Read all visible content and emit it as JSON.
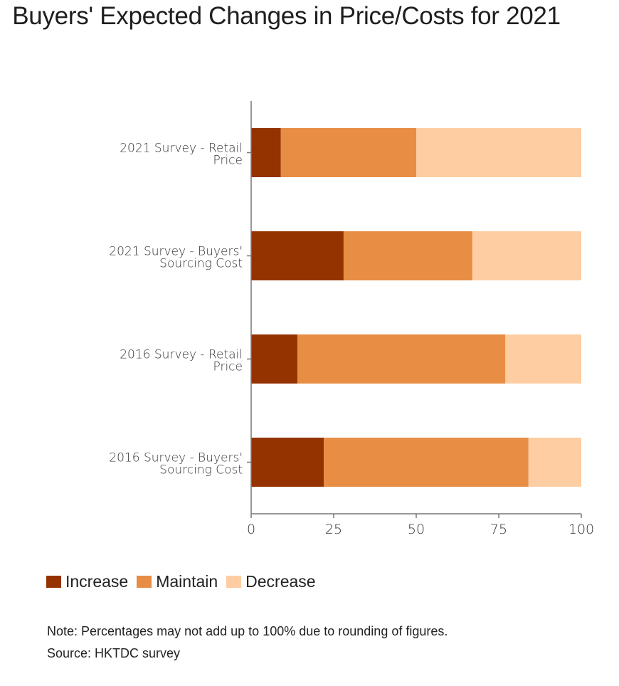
{
  "chart_data": {
    "type": "bar",
    "orientation": "horizontal",
    "stacked": true,
    "title": "Buyers' Expected Changes in Price/Costs for 2021",
    "categories": [
      [
        "2021 Survey - Retail",
        "Price"
      ],
      [
        "2021 Survey - Buyers'",
        "Sourcing Cost"
      ],
      [
        "2016 Survey - Retail",
        "Price"
      ],
      [
        "2016 Survey - Buyers'",
        "Sourcing Cost"
      ]
    ],
    "series": [
      {
        "name": "Increase",
        "color": "#943200",
        "values": [
          9,
          28,
          14,
          22
        ]
      },
      {
        "name": "Maintain",
        "color": "#e88d44",
        "values": [
          41,
          39,
          63,
          62
        ]
      },
      {
        "name": "Decrease",
        "color": "#fecda2",
        "values": [
          50,
          33,
          23,
          16
        ]
      }
    ],
    "xlabel": "",
    "ylabel": "",
    "xlim": [
      0,
      100
    ],
    "xticks": [
      0,
      25,
      50,
      75,
      100
    ],
    "grid": false,
    "legend_position": "bottom-left"
  },
  "notes": {
    "note": "Note: Percentages may not add up to 100% due to rounding of figures.",
    "source": "Source: HKTDC survey"
  }
}
